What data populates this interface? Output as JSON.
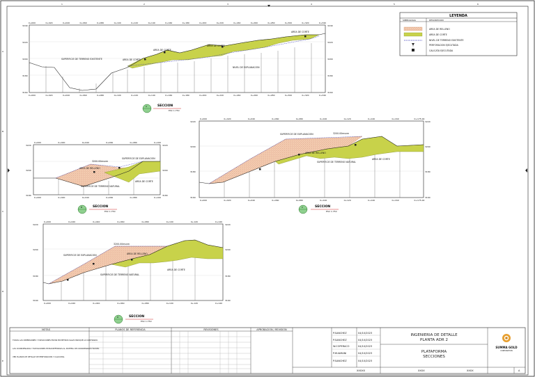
{
  "legend": {
    "title": "LEYENDA",
    "col_left": "SIMBOLOGIA",
    "col_right": "DESCRIPCION",
    "items": [
      {
        "label": "AREA DE RELLENO",
        "kind": "fill-fill"
      },
      {
        "label": "AREA DE CORTE",
        "kind": "cut-fill"
      },
      {
        "label": "NIVEL DE TERRENO EXISTENTE",
        "kind": "dashed"
      },
      {
        "label": "PERFORACION EJECUTADA",
        "kind": "drill"
      },
      {
        "label": "CALICATA EJECUTADA",
        "kind": "pit"
      }
    ],
    "colors": {
      "fill": "#f2c9a8",
      "cut": "#c8d24a",
      "terrain_line": "#3a3ab8"
    }
  },
  "sections": [
    {
      "letter": "A",
      "title": "SECCION",
      "scale": "ESC 1:750",
      "top_ticks": [
        "0+000",
        "0+020",
        "0+040",
        "0+060",
        "0+080",
        "0+100",
        "0+120",
        "0+140",
        "0+160",
        "0+180",
        "0+200",
        "0+220",
        "0+240",
        "0+260",
        "0+280",
        "0+300",
        "0+320",
        "0+340"
      ],
      "bottom_ticks": [
        "0+000",
        "0+020",
        "0+040",
        "0+060",
        "0+080",
        "0+100",
        "0+120",
        "0+140",
        "0+160",
        "0+180",
        "0+200",
        "0+220",
        "0+240",
        "0+260",
        "0+280",
        "0+300",
        "0+320",
        "0+340"
      ],
      "elev_left": [
        "3240",
        "3220",
        "3200",
        "3180",
        "3160"
      ],
      "elev_right": [
        "3240",
        "3220",
        "3200",
        "3180",
        "3160"
      ],
      "notes": [
        {
          "text": "SUPERFICIE DE TERRENO EXISTENTE"
        },
        {
          "text": "AREA DE CORTE"
        },
        {
          "text": "AREA DE CORTE"
        },
        {
          "text": "AREA DE CORTE"
        },
        {
          "text": "AREA DE CORTE"
        },
        {
          "text": "NIVEL DE EXPLANACION"
        }
      ]
    },
    {
      "letter": "B",
      "title": "SECCION",
      "scale": "ESC 1:750",
      "top_ticks": [
        "0+000",
        "0+020",
        "0+040",
        "0+060",
        "0+080",
        "0+100"
      ],
      "bottom_ticks": [
        "0+000",
        "0+020",
        "0+040",
        "0+060",
        "0+080",
        "0+100"
      ],
      "elev_left": [
        "3220",
        "3200",
        "3180"
      ],
      "elev_right": [
        "3220",
        "3200",
        "3180"
      ],
      "notes": [
        {
          "text": "3200.00msnm"
        },
        {
          "text": "SUPERFICIE DE EXPLANACION"
        },
        {
          "text": "AREA DE RELLENO"
        },
        {
          "text": "SUPERFICIE DE TERRENO NATURAL"
        },
        {
          "text": "AREA DE CORTE"
        }
      ]
    },
    {
      "letter": "C",
      "title": "SECCION",
      "scale": "ESC 1:750",
      "top_ticks": [
        "0+000",
        "0+020",
        "0+040",
        "0+060",
        "0+080",
        "0+100",
        "0+120",
        "0+140",
        "0+160",
        "0+175.00"
      ],
      "bottom_ticks": [
        "0+000",
        "0+020",
        "0+040",
        "0+060",
        "0+080",
        "0+100",
        "0+120",
        "0+140",
        "0+160",
        "0+175.00"
      ],
      "elev_left": [
        "3220",
        "3200",
        "3180",
        "3160"
      ],
      "elev_right": [
        "3220",
        "3200",
        "3180",
        "3160"
      ],
      "notes": [
        {
          "text": "SUPERFICIE DE EXPLANACION"
        },
        {
          "text": "3200.00msnm"
        },
        {
          "text": "AREA DE RELLENO"
        },
        {
          "text": "SUPERFICIE DE TERRENO NATURAL"
        },
        {
          "text": "AREA DE CORTE"
        }
      ]
    },
    {
      "letter": "D",
      "title": "SECCION",
      "scale": "ESC 1:750",
      "top_ticks": [
        "0+000",
        "0+020",
        "0+040",
        "0+060",
        "0+080",
        "0+100",
        "0+120",
        "0+140"
      ],
      "bottom_ticks": [
        "0+000",
        "0+020",
        "0+040",
        "0+060",
        "0+080",
        "0+100",
        "0+120",
        "0+140"
      ],
      "elev_left": [
        "3220",
        "3200",
        "3180",
        "3160"
      ],
      "elev_right": [
        "3220",
        "3200",
        "3180",
        "3160"
      ],
      "notes": [
        {
          "text": "3200.00msnm"
        },
        {
          "text": "SUPERFICIE DE EXPLANACION"
        },
        {
          "text": "AREA DE RELLENO"
        },
        {
          "text": "SUPERFICIE DE TERRENO NATURAL"
        },
        {
          "text": "AREA DE CORTE"
        }
      ]
    }
  ],
  "border": {
    "top_letters": [
      "1",
      "2",
      "3",
      "4",
      "5",
      "6"
    ],
    "side_letters": [
      "A",
      "B",
      "C",
      "D",
      "E"
    ]
  },
  "title_block": {
    "notes_header": "NOTAS",
    "notes": [
      "TODAS LAS DIMENSIONES Y ELEVACIONES ESTAN EN METROS SALVO INDIQUE LO CONTRARIO.",
      "LAS COORDENADAS Y ELEVACIONES ESTAN REFERIDAS AL SISTEMA DE COORDENADAS WGS84.",
      "VER PLANOS DE DETALLE DE PERFORACION Y CALICATAS."
    ],
    "ref_header": "PLANOS DE REFERENCIA",
    "rev_header": "REVISIONES",
    "approvals_header": "APROBACION / REVISION",
    "signers": [
      {
        "name": "P.SANCHEZ",
        "date": "04/10/2023"
      },
      {
        "name": "P.SANCHEZ",
        "date": "04/10/2023"
      },
      {
        "name": "W.COPERACO",
        "date": "04/10/2023"
      },
      {
        "name": "P.HUAMANI",
        "date": "04/10/2023"
      },
      {
        "name": "P.SANCHEZ",
        "date": "04/10/2023"
      }
    ],
    "project_title_1": "INGENIERIA DE DETALLE",
    "project_title_2": "PLANTA ADR 2",
    "drawing_title_1": "PLATAFORMA",
    "drawing_title_2": "SECCIONES",
    "company": "SUMMA GOLD",
    "company_sub": "CORPORATION",
    "sheet_codes": [
      "XXXXX",
      "XXXX",
      "XXXX"
    ],
    "revision": "A"
  }
}
